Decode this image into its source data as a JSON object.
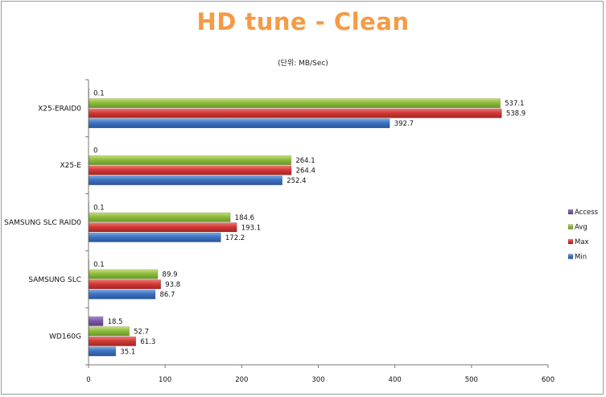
{
  "chart_data": {
    "type": "bar",
    "orientation": "horizontal",
    "title": "HD tune - Clean",
    "subtitle": "(단위: MB/Sec)",
    "categories": [
      "WD160G",
      "SAMSUNG SLC",
      "SAMSUNG SLC RAID0",
      "X25-E",
      "X25-ERAID0"
    ],
    "series": [
      {
        "name": "Access",
        "color": "#7b5aa6",
        "values": [
          18.5,
          0.1,
          0.1,
          0,
          0.1
        ]
      },
      {
        "name": "Avg",
        "color": "#8dbb3c",
        "values": [
          52.7,
          89.9,
          184.6,
          264.1,
          537.1
        ]
      },
      {
        "name": "Max",
        "color": "#d23a37",
        "values": [
          61.3,
          93.8,
          193.1,
          264.4,
          538.9
        ]
      },
      {
        "name": "Min",
        "color": "#3c73c2",
        "values": [
          35.1,
          86.7,
          172.2,
          252.4,
          392.7
        ]
      }
    ],
    "xlim": [
      0,
      600
    ],
    "x_ticks": [
      0,
      100,
      200,
      300,
      400,
      500,
      600
    ],
    "legend_position": "right",
    "grid": false
  }
}
